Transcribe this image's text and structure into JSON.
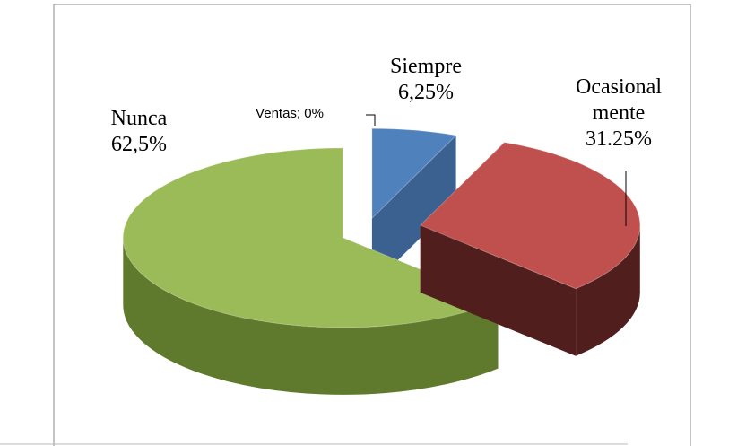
{
  "chart_data": {
    "type": "pie",
    "categories": [
      "Ventas",
      "Siempre",
      "Ocasional mente",
      "Nunca"
    ],
    "values": [
      0,
      6.25,
      31.25,
      62.5
    ],
    "value_labels": [
      "0%",
      "6,25%",
      "31.25%",
      "62,5%"
    ],
    "colors": [
      "#4f81bd",
      "#4f81bd",
      "#c0504d",
      "#9bbb59"
    ],
    "side_colors": [
      "#3a6190",
      "#3a6190",
      "#4f1e1d",
      "#5f7a2c"
    ]
  }
}
